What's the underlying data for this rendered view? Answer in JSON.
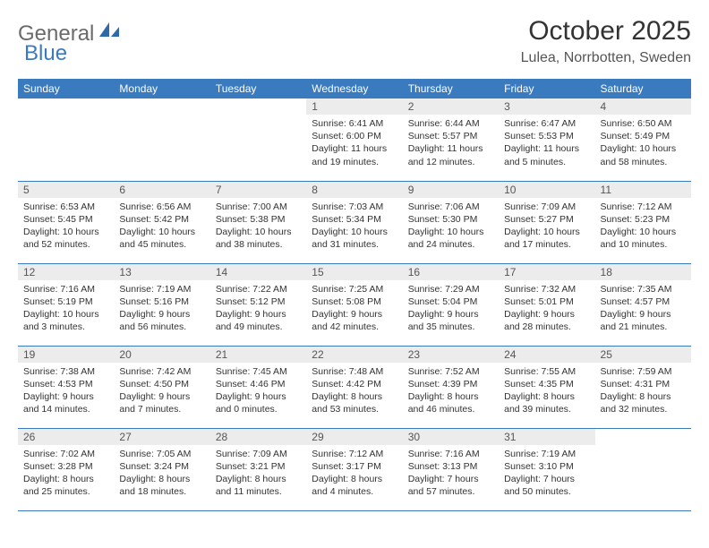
{
  "logo": {
    "word1": "General",
    "word2": "Blue"
  },
  "title": "October 2025",
  "location": "Lulea, Norrbotten, Sweden",
  "headers": [
    "Sunday",
    "Monday",
    "Tuesday",
    "Wednesday",
    "Thursday",
    "Friday",
    "Saturday"
  ],
  "colors": {
    "header_bg": "#3a7abf",
    "header_text": "#ffffff",
    "daynum_bg": "#ececec",
    "border": "#3a7abf",
    "text": "#333333",
    "logo_gray": "#6b6b6b",
    "logo_blue": "#3a7abf"
  },
  "weeks": [
    [
      null,
      null,
      null,
      {
        "n": "1",
        "sr": "Sunrise: 6:41 AM",
        "ss": "Sunset: 6:00 PM",
        "d1": "Daylight: 11 hours",
        "d2": "and 19 minutes."
      },
      {
        "n": "2",
        "sr": "Sunrise: 6:44 AM",
        "ss": "Sunset: 5:57 PM",
        "d1": "Daylight: 11 hours",
        "d2": "and 12 minutes."
      },
      {
        "n": "3",
        "sr": "Sunrise: 6:47 AM",
        "ss": "Sunset: 5:53 PM",
        "d1": "Daylight: 11 hours",
        "d2": "and 5 minutes."
      },
      {
        "n": "4",
        "sr": "Sunrise: 6:50 AM",
        "ss": "Sunset: 5:49 PM",
        "d1": "Daylight: 10 hours",
        "d2": "and 58 minutes."
      }
    ],
    [
      {
        "n": "5",
        "sr": "Sunrise: 6:53 AM",
        "ss": "Sunset: 5:45 PM",
        "d1": "Daylight: 10 hours",
        "d2": "and 52 minutes."
      },
      {
        "n": "6",
        "sr": "Sunrise: 6:56 AM",
        "ss": "Sunset: 5:42 PM",
        "d1": "Daylight: 10 hours",
        "d2": "and 45 minutes."
      },
      {
        "n": "7",
        "sr": "Sunrise: 7:00 AM",
        "ss": "Sunset: 5:38 PM",
        "d1": "Daylight: 10 hours",
        "d2": "and 38 minutes."
      },
      {
        "n": "8",
        "sr": "Sunrise: 7:03 AM",
        "ss": "Sunset: 5:34 PM",
        "d1": "Daylight: 10 hours",
        "d2": "and 31 minutes."
      },
      {
        "n": "9",
        "sr": "Sunrise: 7:06 AM",
        "ss": "Sunset: 5:30 PM",
        "d1": "Daylight: 10 hours",
        "d2": "and 24 minutes."
      },
      {
        "n": "10",
        "sr": "Sunrise: 7:09 AM",
        "ss": "Sunset: 5:27 PM",
        "d1": "Daylight: 10 hours",
        "d2": "and 17 minutes."
      },
      {
        "n": "11",
        "sr": "Sunrise: 7:12 AM",
        "ss": "Sunset: 5:23 PM",
        "d1": "Daylight: 10 hours",
        "d2": "and 10 minutes."
      }
    ],
    [
      {
        "n": "12",
        "sr": "Sunrise: 7:16 AM",
        "ss": "Sunset: 5:19 PM",
        "d1": "Daylight: 10 hours",
        "d2": "and 3 minutes."
      },
      {
        "n": "13",
        "sr": "Sunrise: 7:19 AM",
        "ss": "Sunset: 5:16 PM",
        "d1": "Daylight: 9 hours",
        "d2": "and 56 minutes."
      },
      {
        "n": "14",
        "sr": "Sunrise: 7:22 AM",
        "ss": "Sunset: 5:12 PM",
        "d1": "Daylight: 9 hours",
        "d2": "and 49 minutes."
      },
      {
        "n": "15",
        "sr": "Sunrise: 7:25 AM",
        "ss": "Sunset: 5:08 PM",
        "d1": "Daylight: 9 hours",
        "d2": "and 42 minutes."
      },
      {
        "n": "16",
        "sr": "Sunrise: 7:29 AM",
        "ss": "Sunset: 5:04 PM",
        "d1": "Daylight: 9 hours",
        "d2": "and 35 minutes."
      },
      {
        "n": "17",
        "sr": "Sunrise: 7:32 AM",
        "ss": "Sunset: 5:01 PM",
        "d1": "Daylight: 9 hours",
        "d2": "and 28 minutes."
      },
      {
        "n": "18",
        "sr": "Sunrise: 7:35 AM",
        "ss": "Sunset: 4:57 PM",
        "d1": "Daylight: 9 hours",
        "d2": "and 21 minutes."
      }
    ],
    [
      {
        "n": "19",
        "sr": "Sunrise: 7:38 AM",
        "ss": "Sunset: 4:53 PM",
        "d1": "Daylight: 9 hours",
        "d2": "and 14 minutes."
      },
      {
        "n": "20",
        "sr": "Sunrise: 7:42 AM",
        "ss": "Sunset: 4:50 PM",
        "d1": "Daylight: 9 hours",
        "d2": "and 7 minutes."
      },
      {
        "n": "21",
        "sr": "Sunrise: 7:45 AM",
        "ss": "Sunset: 4:46 PM",
        "d1": "Daylight: 9 hours",
        "d2": "and 0 minutes."
      },
      {
        "n": "22",
        "sr": "Sunrise: 7:48 AM",
        "ss": "Sunset: 4:42 PM",
        "d1": "Daylight: 8 hours",
        "d2": "and 53 minutes."
      },
      {
        "n": "23",
        "sr": "Sunrise: 7:52 AM",
        "ss": "Sunset: 4:39 PM",
        "d1": "Daylight: 8 hours",
        "d2": "and 46 minutes."
      },
      {
        "n": "24",
        "sr": "Sunrise: 7:55 AM",
        "ss": "Sunset: 4:35 PM",
        "d1": "Daylight: 8 hours",
        "d2": "and 39 minutes."
      },
      {
        "n": "25",
        "sr": "Sunrise: 7:59 AM",
        "ss": "Sunset: 4:31 PM",
        "d1": "Daylight: 8 hours",
        "d2": "and 32 minutes."
      }
    ],
    [
      {
        "n": "26",
        "sr": "Sunrise: 7:02 AM",
        "ss": "Sunset: 3:28 PM",
        "d1": "Daylight: 8 hours",
        "d2": "and 25 minutes."
      },
      {
        "n": "27",
        "sr": "Sunrise: 7:05 AM",
        "ss": "Sunset: 3:24 PM",
        "d1": "Daylight: 8 hours",
        "d2": "and 18 minutes."
      },
      {
        "n": "28",
        "sr": "Sunrise: 7:09 AM",
        "ss": "Sunset: 3:21 PM",
        "d1": "Daylight: 8 hours",
        "d2": "and 11 minutes."
      },
      {
        "n": "29",
        "sr": "Sunrise: 7:12 AM",
        "ss": "Sunset: 3:17 PM",
        "d1": "Daylight: 8 hours",
        "d2": "and 4 minutes."
      },
      {
        "n": "30",
        "sr": "Sunrise: 7:16 AM",
        "ss": "Sunset: 3:13 PM",
        "d1": "Daylight: 7 hours",
        "d2": "and 57 minutes."
      },
      {
        "n": "31",
        "sr": "Sunrise: 7:19 AM",
        "ss": "Sunset: 3:10 PM",
        "d1": "Daylight: 7 hours",
        "d2": "and 50 minutes."
      },
      null
    ]
  ]
}
